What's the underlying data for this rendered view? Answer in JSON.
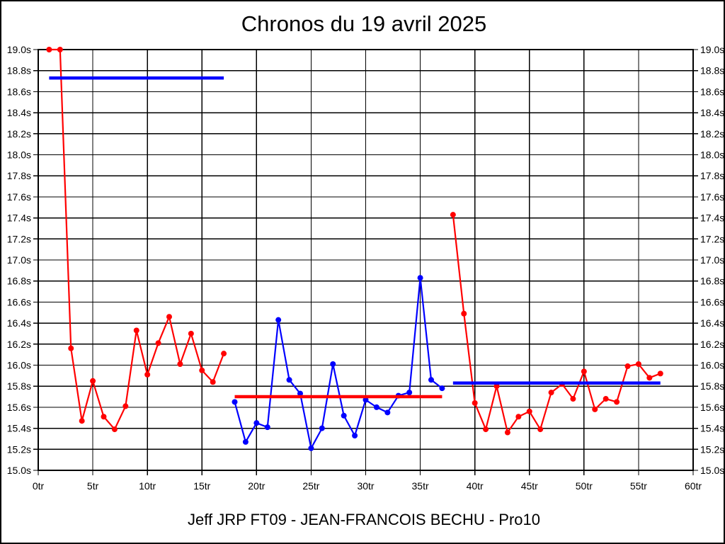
{
  "chart_data": {
    "type": "line",
    "title": "Chronos du 19 avril 2025",
    "footer": "Jeff JRP FT09 - JEAN-FRANCOIS BECHU - Pro10",
    "x_unit": "tr",
    "y_unit": "s",
    "xlim": [
      0,
      60
    ],
    "ylim": [
      15.0,
      19.0
    ],
    "x_tick_step": 5,
    "y_tick_step": 0.2,
    "grid": true,
    "legend": "none",
    "x_tick_labels": [
      "0tr",
      "5tr",
      "10tr",
      "15tr",
      "20tr",
      "25tr",
      "30tr",
      "35tr",
      "40tr",
      "45tr",
      "50tr",
      "55tr",
      "60tr"
    ],
    "y_tick_labels": [
      "19.0s",
      "18.8s",
      "18.6s",
      "18.4s",
      "18.2s",
      "18.0s",
      "17.8s",
      "17.6s",
      "17.4s",
      "17.2s",
      "17.0s",
      "16.8s",
      "16.6s",
      "16.4s",
      "16.2s",
      "16.0s",
      "15.8s",
      "15.6s",
      "15.4s",
      "15.2s",
      "15.0s"
    ],
    "colors": {
      "stint_red": "#ff0000",
      "stint_blue": "#0000ff",
      "grid": "#000000",
      "background": "#ffffff",
      "text": "#000000"
    },
    "series": [
      {
        "name": "stint-1-lap-times",
        "color": "#ff0000",
        "start_lap": 1,
        "values": [
          19.0,
          19.0,
          16.16,
          15.47,
          15.85,
          15.51,
          15.39,
          15.61,
          16.33,
          15.91,
          16.21,
          16.46,
          16.01,
          16.3,
          15.95,
          15.84,
          16.11
        ]
      },
      {
        "name": "stint-2-lap-times",
        "color": "#0000ff",
        "start_lap": 18,
        "values": [
          15.65,
          15.27,
          15.45,
          15.41,
          16.43,
          15.86,
          15.73,
          15.21,
          15.4,
          16.01,
          15.52,
          15.33,
          15.67,
          15.6,
          15.55,
          15.71,
          15.74,
          16.83,
          15.86,
          15.78
        ]
      },
      {
        "name": "stint-3-lap-times",
        "color": "#ff0000",
        "start_lap": 38,
        "values": [
          17.43,
          16.49,
          15.64,
          15.39,
          15.8,
          15.36,
          15.51,
          15.56,
          15.39,
          15.74,
          15.82,
          15.68,
          15.94,
          15.58,
          15.68,
          15.65,
          15.99,
          16.01,
          15.88,
          15.92
        ]
      }
    ],
    "reference_lines": [
      {
        "name": "average-line-stint-1",
        "color": "#0000ff",
        "value": 18.73,
        "from_lap": 1,
        "to_lap": 17
      },
      {
        "name": "average-line-stint-2",
        "color": "#ff0000",
        "value": 15.7,
        "from_lap": 18,
        "to_lap": 37
      },
      {
        "name": "average-line-stint-3",
        "color": "#0000ff",
        "value": 15.83,
        "from_lap": 38,
        "to_lap": 57
      }
    ]
  }
}
